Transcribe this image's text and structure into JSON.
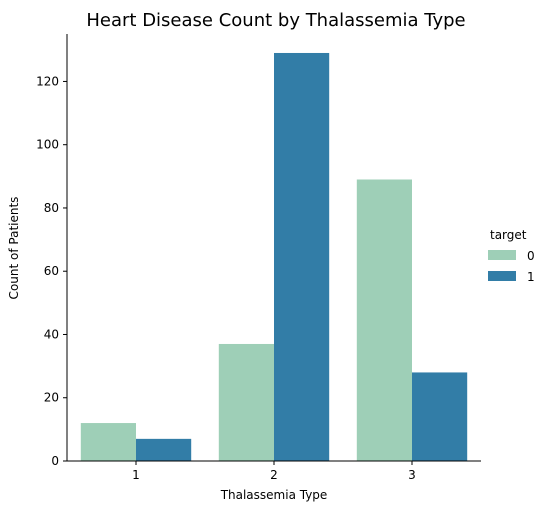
{
  "chart_data": {
    "type": "bar",
    "title": "Heart Disease Count by Thalassemia Type",
    "xlabel": "Thalassemia Type",
    "ylabel": "Count of Patients",
    "categories": [
      "1",
      "2",
      "3"
    ],
    "ylim": [
      0,
      135
    ],
    "yticks": [
      0,
      20,
      40,
      60,
      80,
      100,
      120
    ],
    "grid": false,
    "legend": {
      "title": "target",
      "placement": "right"
    },
    "series": [
      {
        "name": "0",
        "values": [
          12,
          37,
          89
        ],
        "color": "#9ecfb7"
      },
      {
        "name": "1",
        "values": [
          7,
          129,
          28
        ],
        "color": "#327da7"
      }
    ]
  }
}
